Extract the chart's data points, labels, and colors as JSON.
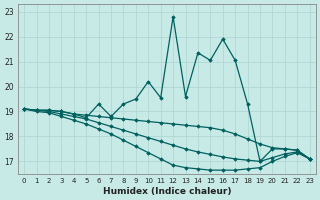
{
  "xlabel": "Humidex (Indice chaleur)",
  "background_color": "#c8eae6",
  "grid_color": "#b0d8d4",
  "line_color": "#006060",
  "xlim": [
    -0.5,
    23.5
  ],
  "ylim": [
    16.5,
    23.3
  ],
  "yticks": [
    17,
    18,
    19,
    20,
    21,
    22,
    23
  ],
  "xticks": [
    0,
    1,
    2,
    3,
    4,
    5,
    6,
    7,
    8,
    9,
    10,
    11,
    12,
    13,
    14,
    15,
    16,
    17,
    18,
    19,
    20,
    21,
    22,
    23
  ],
  "lines": [
    {
      "x": [
        0,
        1,
        2,
        3,
        4,
        5,
        6,
        7,
        8,
        9,
        10,
        11,
        12,
        13,
        14,
        15,
        16,
        17,
        18,
        19,
        20,
        21,
        22,
        23
      ],
      "y": [
        19.1,
        19.05,
        19.05,
        19.0,
        18.9,
        18.85,
        18.8,
        18.75,
        18.7,
        18.65,
        18.6,
        18.55,
        18.5,
        18.45,
        18.4,
        18.35,
        18.25,
        18.1,
        17.9,
        17.7,
        17.55,
        17.5,
        17.45,
        17.1
      ],
      "linewidth": 0.9
    },
    {
      "x": [
        0,
        1,
        2,
        3,
        4,
        5,
        6,
        7,
        8,
        9,
        10,
        11,
        12,
        13,
        14,
        15,
        16,
        17,
        18,
        19,
        20,
        21,
        22,
        23
      ],
      "y": [
        19.1,
        19.05,
        19.0,
        18.9,
        18.8,
        18.7,
        18.55,
        18.4,
        18.25,
        18.1,
        17.95,
        17.8,
        17.65,
        17.5,
        17.38,
        17.28,
        17.18,
        17.1,
        17.05,
        17.0,
        17.15,
        17.3,
        17.38,
        17.1
      ],
      "linewidth": 0.9
    },
    {
      "x": [
        0,
        1,
        2,
        3,
        4,
        5,
        6,
        7,
        8,
        9,
        10,
        11,
        12,
        13,
        14,
        15,
        16,
        17,
        18,
        19,
        20,
        21,
        22,
        23
      ],
      "y": [
        19.1,
        19.0,
        18.95,
        18.8,
        18.65,
        18.5,
        18.3,
        18.1,
        17.85,
        17.6,
        17.35,
        17.1,
        16.85,
        16.75,
        16.7,
        16.65,
        16.65,
        16.65,
        16.7,
        16.75,
        17.0,
        17.2,
        17.35,
        17.1
      ],
      "linewidth": 0.9
    },
    {
      "x": [
        0,
        1,
        2,
        3,
        4,
        5,
        6,
        7,
        8,
        9,
        10,
        11,
        12,
        13,
        14,
        15,
        16,
        17,
        18,
        19,
        20,
        21,
        22,
        23
      ],
      "y": [
        19.1,
        19.05,
        19.05,
        19.0,
        18.9,
        18.75,
        19.3,
        18.8,
        19.3,
        19.5,
        20.2,
        19.55,
        22.8,
        19.6,
        21.35,
        21.05,
        21.9,
        21.05,
        19.3,
        17.0,
        17.5,
        17.5,
        17.45,
        17.1
      ],
      "linewidth": 0.9
    }
  ]
}
